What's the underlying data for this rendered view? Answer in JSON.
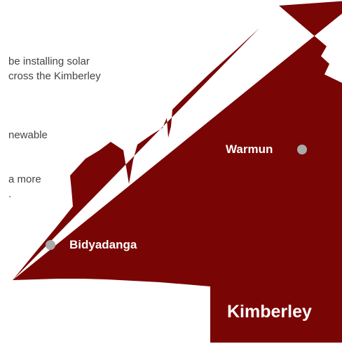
{
  "intro_text": {
    "lines": [
      "be installing solar",
      "cross the Kimberley",
      "newable",
      "a more",
      "."
    ]
  },
  "map": {
    "region_label": "Kimberley",
    "region_color": "#7a0505",
    "marker_color": "#a8aba8",
    "towns": [
      {
        "name": "Warmun",
        "icon": "location-dot-icon"
      },
      {
        "name": "Bidyadanga",
        "icon": "location-dot-icon"
      }
    ]
  }
}
